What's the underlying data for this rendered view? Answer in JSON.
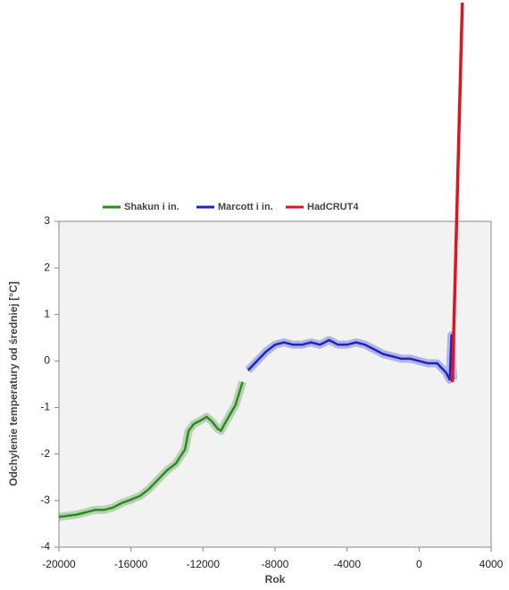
{
  "chart_data": {
    "type": "line",
    "xlabel": "Rok",
    "ylabel": "Odchylenie temperatury od średniej [°C]",
    "xlim": [
      -20000,
      4000
    ],
    "xticks": [
      -20000,
      -16000,
      -12000,
      -8000,
      -4000,
      0,
      4000
    ],
    "ylim": [
      -4,
      3
    ],
    "yticks": [
      -4,
      -3,
      -2,
      -1,
      0,
      1,
      2,
      3
    ],
    "grid": false,
    "legend": "top",
    "series": [
      {
        "name": "Shakun i in.",
        "color": "#2e8b22",
        "x": [
          -20000,
          -19000,
          -18000,
          -17500,
          -17000,
          -16500,
          -16000,
          -15500,
          -15000,
          -14500,
          -14000,
          -13500,
          -13000,
          -12800,
          -12500,
          -12000,
          -11800,
          -11500,
          -11200,
          -11000,
          -10800,
          -10500,
          -10200,
          -10000,
          -9800
        ],
        "values": [
          -3.35,
          -3.3,
          -3.2,
          -3.2,
          -3.15,
          -3.05,
          -2.98,
          -2.9,
          -2.75,
          -2.55,
          -2.35,
          -2.2,
          -1.9,
          -1.5,
          -1.35,
          -1.25,
          -1.2,
          -1.3,
          -1.45,
          -1.5,
          -1.35,
          -1.15,
          -0.95,
          -0.7,
          -0.45
        ]
      },
      {
        "name": "Marcott i in.",
        "color": "#1a24c8",
        "x": [
          -9500,
          -9000,
          -8500,
          -8000,
          -7500,
          -7000,
          -6500,
          -6000,
          -5500,
          -5000,
          -4500,
          -4000,
          -3500,
          -3000,
          -2500,
          -2000,
          -1500,
          -1000,
          -500,
          0,
          500,
          1000,
          1500,
          1700,
          1800,
          1850,
          1900
        ],
        "values": [
          -0.2,
          0,
          0.2,
          0.35,
          0.4,
          0.35,
          0.35,
          0.4,
          0.35,
          0.45,
          0.35,
          0.35,
          0.4,
          0.35,
          0.25,
          0.15,
          0.1,
          0.05,
          0.05,
          0,
          -0.05,
          -0.05,
          -0.25,
          -0.4,
          0.55,
          -0.1,
          -0.4
        ]
      },
      {
        "name": "HadCRUT4",
        "color": "#e0141e",
        "x": [
          1850,
          2400
        ],
        "values": [
          -0.45,
          7.7
        ]
      }
    ]
  }
}
